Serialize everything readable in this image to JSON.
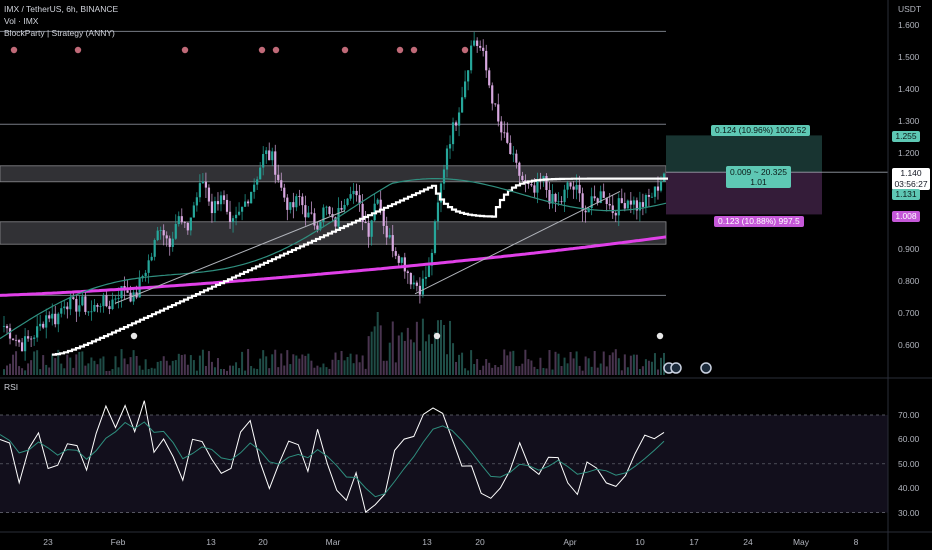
{
  "header": {
    "symbol_line": "IMX / TetherUS, 6h, BINANCE",
    "volume_label": "Vol · IMX",
    "strategy_label": "BlockParty | Strategy (ANNY)"
  },
  "price_axis": {
    "currency": "USDT",
    "ticks": [
      "1.600",
      "1.500",
      "1.400",
      "1.300",
      "1.200",
      "0.900",
      "0.800",
      "0.700",
      "0.600"
    ],
    "current_price": "1.140",
    "countdown": "03:56:27",
    "badge_upper": "1.255",
    "badge_mid": "1.131",
    "badge_lower": "1.008"
  },
  "position_tool": {
    "target_label": "0.124 (10.96%) 1002.52",
    "entry_label_line1": "0.009 ~ 20.325",
    "entry_label_line2": "1.01",
    "stop_label": "0.123 (10.88%) 997.5",
    "colors": {
      "profit": "#1b3a36",
      "loss": "#3a1f3f",
      "target_badge": "#5ec8b4",
      "stop_badge": "#c558d8"
    }
  },
  "rsi_panel": {
    "label": "RSI",
    "ticks": [
      "70.00",
      "60.00",
      "50.00",
      "40.00",
      "30.00"
    ]
  },
  "time_axis": {
    "ticks": [
      "23",
      "Feb",
      "13",
      "20",
      "Mar",
      "13",
      "20",
      "Apr",
      "10",
      "17",
      "24",
      "May",
      "8"
    ]
  },
  "chart_data": {
    "type": "candlestick",
    "title": "IMX / TetherUS, 6h, BINANCE",
    "price_range": [
      0.55,
      1.63
    ],
    "rsi_range": [
      25,
      80
    ],
    "horizontal_levels": [
      1.58,
      1.29,
      0.755
    ],
    "zones": [
      [
        1.11,
        1.16
      ],
      [
        0.915,
        0.985
      ]
    ],
    "series": [
      {
        "name": "price_close_path",
        "values": [
          0.66,
          0.63,
          0.6,
          0.62,
          0.65,
          0.7,
          0.68,
          0.74,
          0.72,
          0.73,
          0.7,
          0.74,
          0.72,
          0.76,
          0.78,
          0.74,
          0.82,
          0.88,
          0.98,
          0.92,
          1.0,
          0.95,
          1.05,
          1.12,
          1.02,
          1.08,
          0.96,
          1.0,
          1.06,
          1.12,
          1.2,
          1.18,
          1.08,
          1.02,
          1.06,
          1.0,
          0.98,
          1.03,
          0.97,
          1.05,
          1.1,
          1.02,
          0.96,
          1.08,
          0.95,
          0.9,
          0.86,
          0.8,
          0.78,
          0.84,
          1.04,
          1.22,
          1.3,
          1.42,
          1.56,
          1.52,
          1.4,
          1.28,
          1.22,
          1.15,
          1.1,
          1.07,
          1.12,
          1.05,
          1.04,
          1.1,
          1.08,
          1.02,
          1.05,
          1.08,
          1.02,
          1.04,
          1.06,
          1.03,
          1.05,
          1.08,
          1.14
        ]
      },
      {
        "name": "RSI",
        "values": [
          62,
          55,
          45,
          58,
          65,
          52,
          48,
          60,
          55,
          45,
          62,
          70,
          68,
          74,
          60,
          72,
          55,
          64,
          50,
          40,
          58,
          62,
          54,
          46,
          50,
          60,
          66,
          50,
          42,
          48,
          58,
          56,
          50,
          62,
          48,
          42,
          36,
          44,
          32,
          30,
          40,
          52,
          58,
          62,
          70,
          74,
          68,
          60,
          52,
          46,
          40,
          36,
          44,
          50,
          56,
          48,
          44,
          52,
          56,
          44,
          40,
          48,
          50,
          46,
          42,
          48,
          54,
          58,
          62,
          66
        ]
      }
    ]
  },
  "icons": {
    "strategy_marker": "skull-marker-icon",
    "earnings_marker": "circle-marker-icon"
  }
}
